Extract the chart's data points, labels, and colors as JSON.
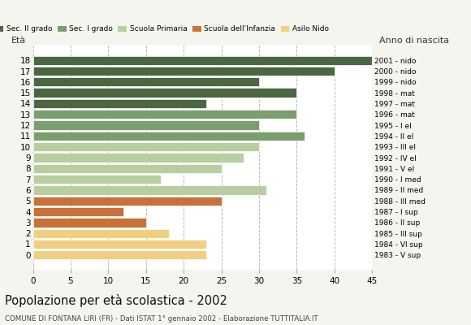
{
  "ages": [
    18,
    17,
    16,
    15,
    14,
    13,
    12,
    11,
    10,
    9,
    8,
    7,
    6,
    5,
    4,
    3,
    2,
    1,
    0
  ],
  "values": [
    45,
    40,
    30,
    35,
    23,
    35,
    30,
    36,
    30,
    28,
    25,
    17,
    31,
    25,
    12,
    15,
    18,
    23,
    23
  ],
  "anno_nascita": [
    "1983 - V sup",
    "1984 - VI sup",
    "1985 - III sup",
    "1986 - II sup",
    "1987 - I sup",
    "1988 - III med",
    "1989 - II med",
    "1990 - I med",
    "1991 - V el",
    "1992 - IV el",
    "1993 - III el",
    "1994 - II el",
    "1995 - I el",
    "1996 - mat",
    "1997 - mat",
    "1998 - mat",
    "1999 - nido",
    "2000 - nido",
    "2001 - nido"
  ],
  "colors": [
    "#4a6741",
    "#4a6741",
    "#4a6741",
    "#4a6741",
    "#4a6741",
    "#7a9e6e",
    "#7a9e6e",
    "#7a9e6e",
    "#b8cea0",
    "#b8cea0",
    "#b8cea0",
    "#b8cea0",
    "#b8cea0",
    "#c8713a",
    "#c8713a",
    "#c8713a",
    "#f0d080",
    "#f0d080",
    "#f0d080"
  ],
  "legend_labels": [
    "Sec. II grado",
    "Sec. I grado",
    "Scuola Primaria",
    "Scuola dell'Infanzia",
    "Asilo Nido"
  ],
  "legend_colors": [
    "#4a6741",
    "#7a9e6e",
    "#b8cea0",
    "#c8713a",
    "#f0d080"
  ],
  "title": "Popolazione per età scolastica - 2002",
  "subtitle": "COMUNE DI FONTANA LIRI (FR) - Dati ISTAT 1° gennaio 2002 - Elaborazione TUTTITALIA.IT",
  "ylabel_left": "Età",
  "ylabel_right": "Anno di nascita",
  "xlim": [
    0,
    45
  ],
  "xticks": [
    0,
    5,
    10,
    15,
    20,
    25,
    30,
    35,
    40,
    45
  ],
  "bg_color": "#f5f5f0",
  "bar_bg_color": "#ffffff"
}
